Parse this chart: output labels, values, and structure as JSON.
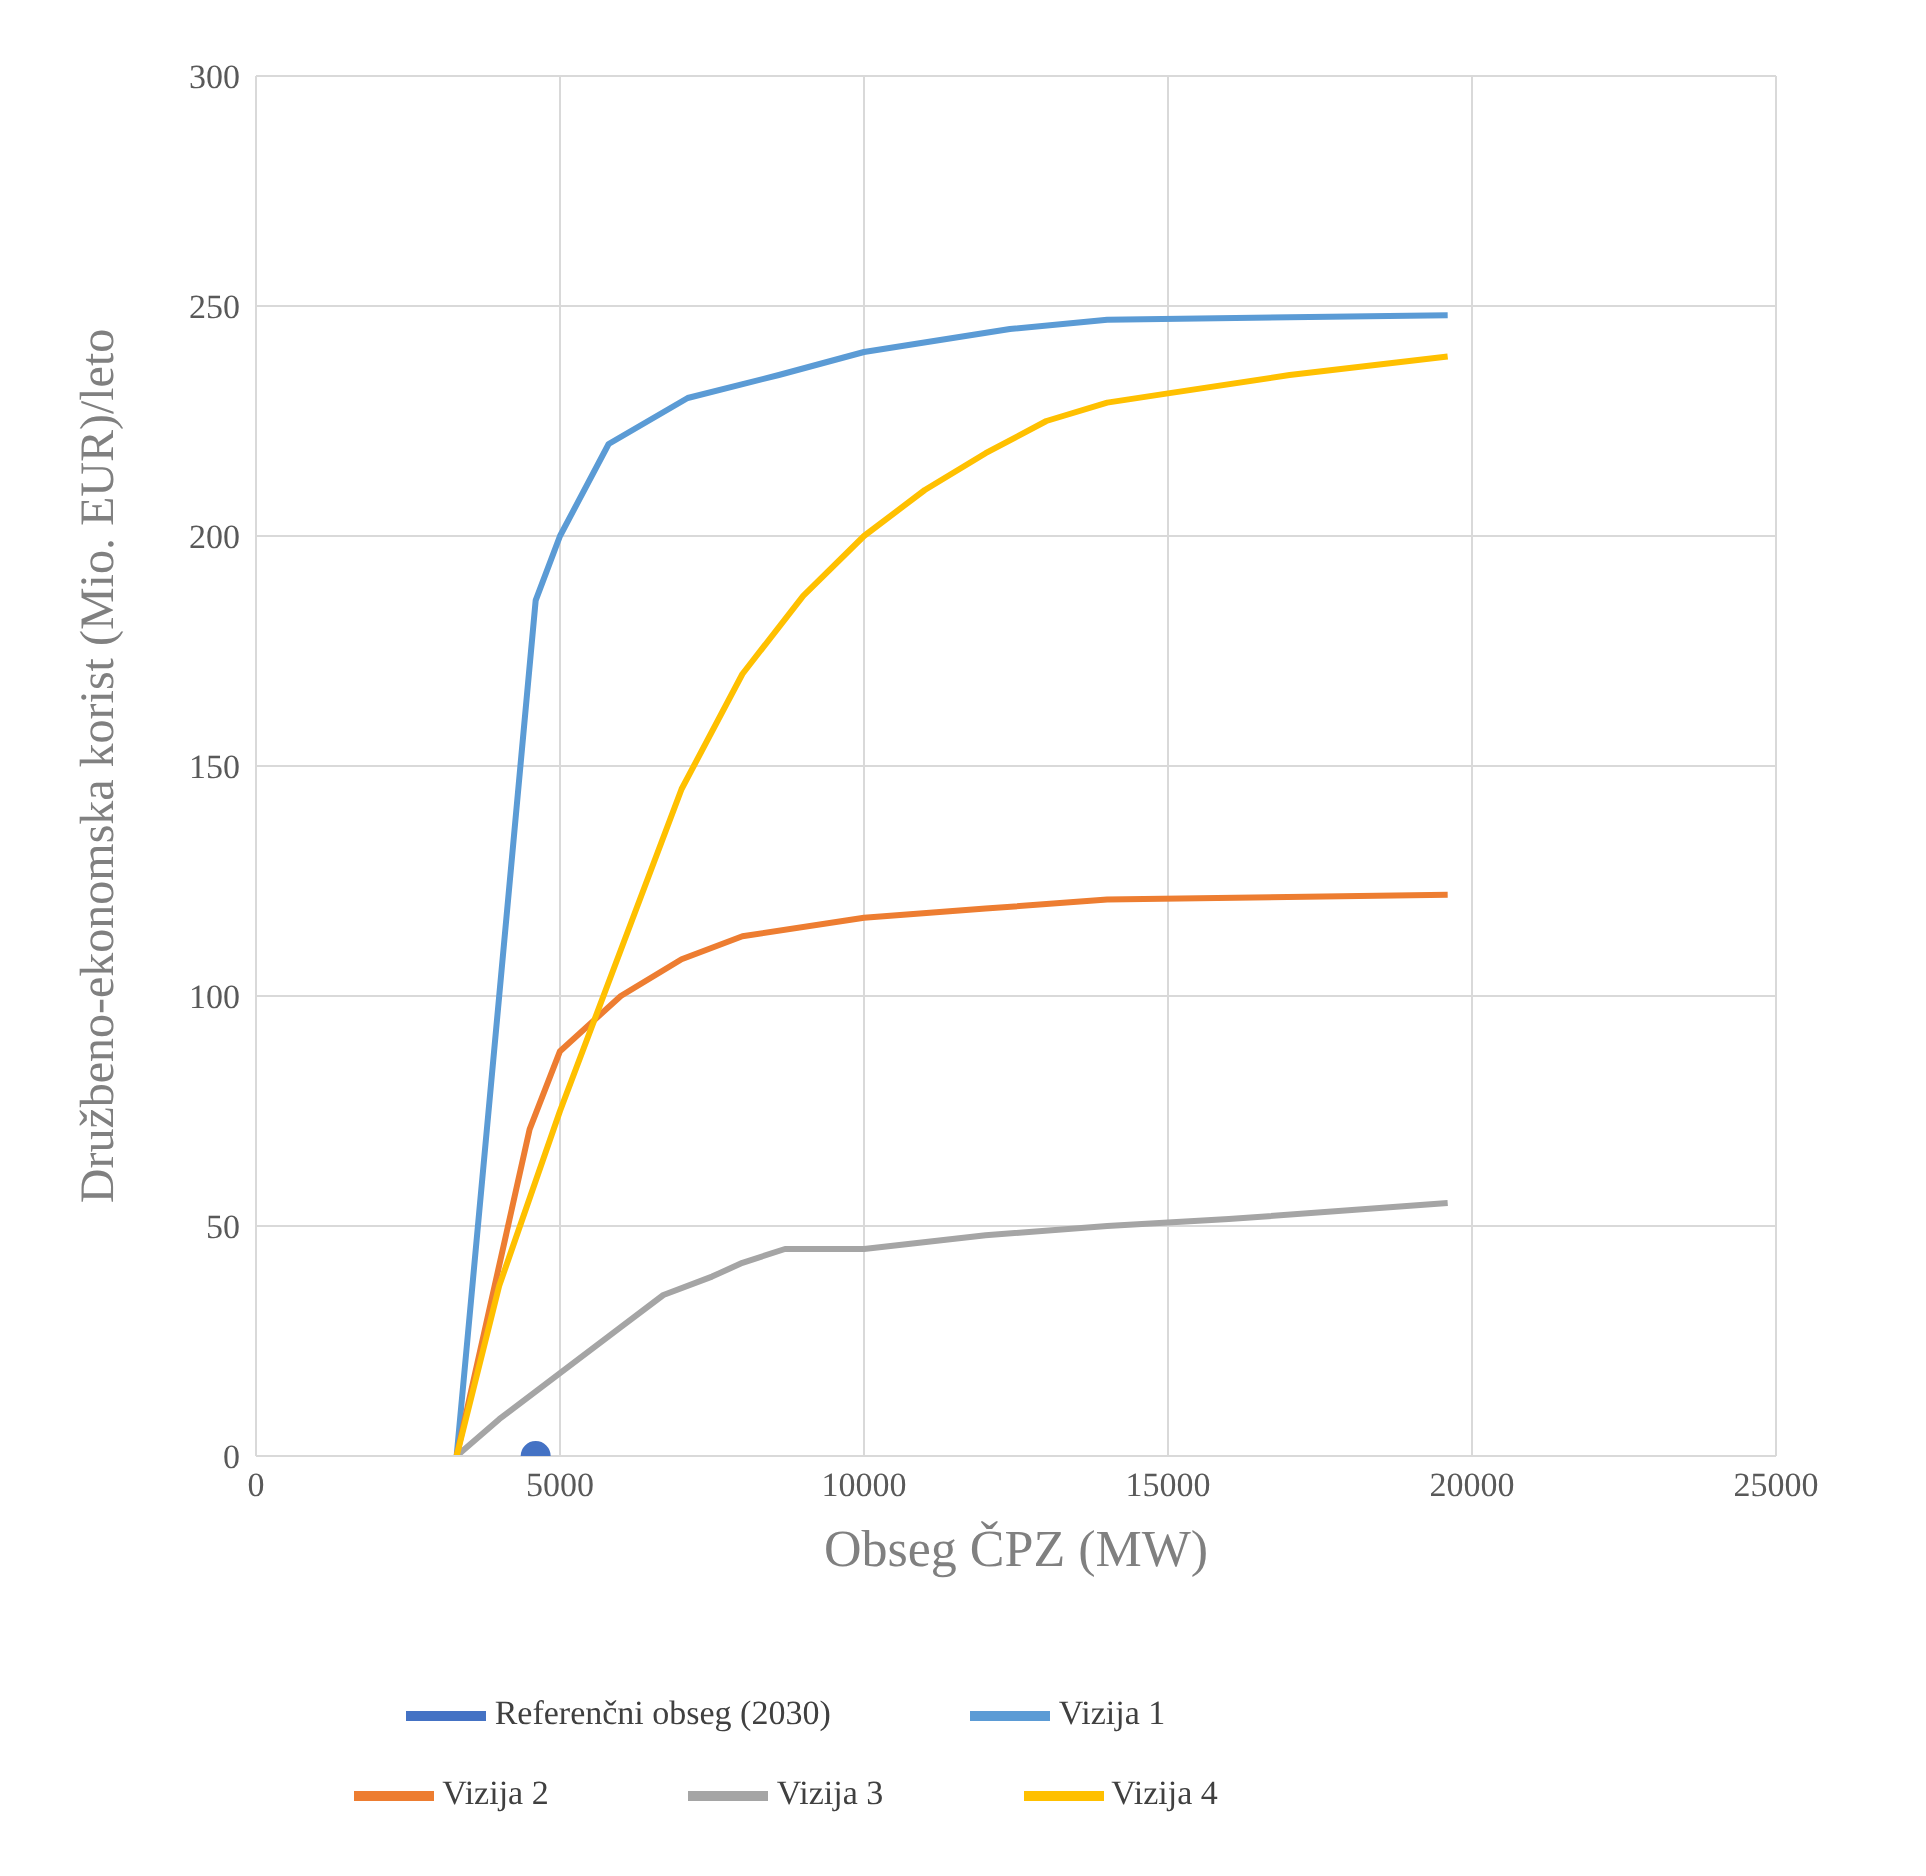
{
  "chart_data": {
    "type": "line",
    "xlabel": "Obseg ČPZ (MW)",
    "ylabel": "Družbeno-ekonomska korist (Mio. EUR)/leto",
    "xlim": [
      0,
      25000
    ],
    "xticks": [
      0,
      5000,
      10000,
      15000,
      20000,
      25000
    ],
    "ylim": [
      0,
      300
    ],
    "yticks": [
      0,
      50,
      100,
      150,
      200,
      250,
      300
    ],
    "grid": true,
    "legend": "bottom",
    "marker": "none",
    "line_style": "solid",
    "series": [
      {
        "name": "Referenčni obseg (2030)",
        "color": "#4472c4",
        "marker": "circle",
        "x": [
          4600
        ],
        "values": [
          0
        ]
      },
      {
        "name": "Vizija 1",
        "color": "#5b9bd5",
        "x": [
          3300,
          4000,
          4600,
          5000,
          5800,
          7100,
          8600,
          10000,
          12400,
          14000,
          19600
        ],
        "values": [
          0,
          100,
          186,
          200,
          220,
          230,
          235,
          240,
          245,
          247,
          248
        ]
      },
      {
        "name": "Vizija 2",
        "color": "#ed7d31",
        "x": [
          3300,
          4500,
          5000,
          6000,
          7000,
          8000,
          10000,
          12000,
          14000,
          19600
        ],
        "values": [
          0,
          71,
          88,
          100,
          108,
          113,
          117,
          119,
          121,
          122
        ]
      },
      {
        "name": "Vizija 3",
        "color": "#a5a5a5",
        "x": [
          3300,
          4000,
          5000,
          6000,
          6700,
          7500,
          8000,
          8700,
          10000,
          12000,
          14000,
          16000,
          19600
        ],
        "values": [
          0,
          8,
          18,
          28,
          35,
          39,
          42,
          45,
          45,
          48,
          50,
          51.5,
          55
        ]
      },
      {
        "name": "Vizija 4",
        "color": "#ffc000",
        "x": [
          3300,
          4000,
          5000,
          6000,
          7000,
          8000,
          9000,
          10000,
          11000,
          12000,
          13000,
          14000,
          15000,
          17000,
          19600
        ],
        "values": [
          0,
          37,
          75,
          110,
          145,
          170,
          187,
          200,
          210,
          218,
          225,
          229,
          231,
          235,
          239
        ]
      }
    ]
  }
}
